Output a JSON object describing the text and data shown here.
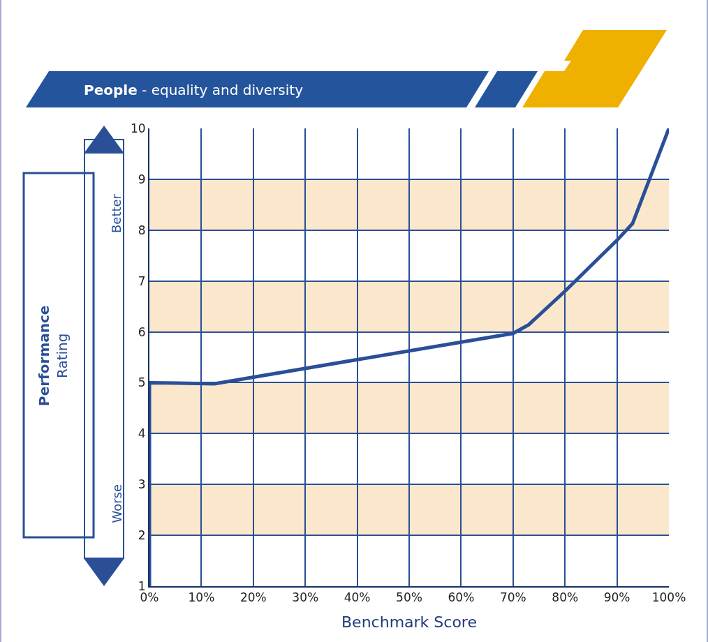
{
  "chart_data": {
    "type": "line",
    "title": "People - equality and diversity",
    "xlabel": "Benchmark Score",
    "ylabel": "Performance Rating",
    "annotations": [
      "Better",
      "Worse"
    ],
    "series": [
      {
        "color": "#2a4f97",
        "x": [
          0,
          0,
          12.5,
          70,
          73,
          80,
          90,
          93,
          100
        ],
        "values": [
          1,
          5.0,
          4.98,
          5.97,
          6.14,
          6.8,
          7.8,
          8.13,
          10
        ]
      }
    ],
    "xlim": [
      0,
      100
    ],
    "ylim": [
      1,
      10
    ],
    "xticks": [
      {
        "value": 0,
        "label": "0%"
      },
      {
        "value": 10,
        "label": "10%"
      },
      {
        "value": 20,
        "label": "20%"
      },
      {
        "value": 30,
        "label": "30%"
      },
      {
        "value": 40,
        "label": "40%"
      },
      {
        "value": 50,
        "label": "50%"
      },
      {
        "value": 60,
        "label": "60%"
      },
      {
        "value": 70,
        "label": "70%"
      },
      {
        "value": 80,
        "label": "80%"
      },
      {
        "value": 90,
        "label": "90%"
      },
      {
        "value": 100,
        "label": "100%"
      }
    ],
    "yticks": [
      1,
      2,
      3,
      4,
      5,
      6,
      7,
      8,
      9,
      10
    ],
    "bands": [
      {
        "axis": "y",
        "from": 2,
        "to": 3,
        "color": "#fbe8cc"
      },
      {
        "axis": "y",
        "from": 4,
        "to": 5,
        "color": "#fbe8cc"
      },
      {
        "axis": "y",
        "from": 6,
        "to": 7,
        "color": "#fbe8cc"
      },
      {
        "axis": "y",
        "from": 8,
        "to": 9,
        "color": "#fbe8cc"
      }
    ],
    "grid": true,
    "marker": "none",
    "line_style": "solid"
  }
}
